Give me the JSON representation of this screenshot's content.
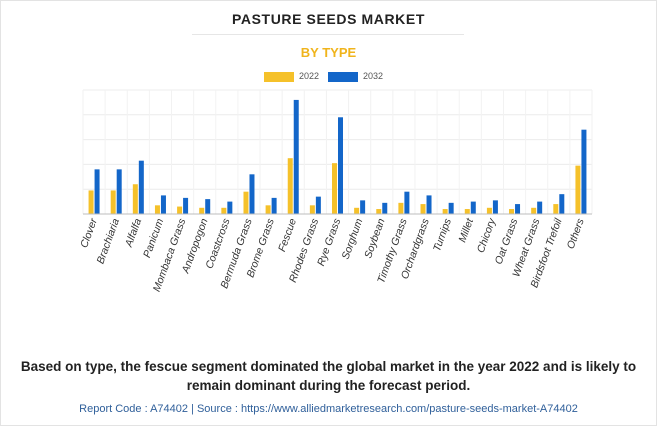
{
  "colors": {
    "y2022": "#f5c12a",
    "y2032": "#1366c9",
    "title": "#222222",
    "subtitle": "#f0b41c",
    "source": "#2f5f9a"
  },
  "chart_data": {
    "type": "bar",
    "title": "PASTURE SEEDS MARKET",
    "subtitle": "BY TYPE",
    "xlabel": "",
    "ylabel": "",
    "grid": true,
    "legend_placement": "top-center",
    "ylim": [
      0,
      100
    ],
    "categories": [
      "Clover",
      "Brachiaria",
      "Alfalfa",
      "Panicum",
      "Mombaca Grass",
      "Andropogon",
      "Coastcross",
      "Bermuda Grass",
      "Brome Grass",
      "Fescue",
      "Rhodes Grass",
      "Rye Grass",
      "Sorghum",
      "Soybean",
      "Timothy Grass",
      "Orchardgrass",
      "Turnips",
      "Millet",
      "Chicory",
      "Oat Grass",
      "Wheat Grass",
      "Birdsfoot Trefoil",
      "Others"
    ],
    "series": [
      {
        "name": "2022",
        "values": [
          19,
          19,
          24,
          7,
          6,
          5,
          5,
          18,
          7,
          45,
          7,
          41,
          5,
          4,
          9,
          8,
          4,
          4,
          5,
          4,
          5,
          8,
          39
        ]
      },
      {
        "name": "2032",
        "values": [
          36,
          36,
          43,
          15,
          13,
          12,
          10,
          32,
          13,
          92,
          14,
          78,
          11,
          9,
          18,
          15,
          9,
          10,
          11,
          8,
          10,
          16,
          68
        ]
      }
    ]
  },
  "caption": "Based on type, the fescue segment dominated the global market in the year 2022 and is likely to remain dominant during the forecast period.",
  "source": "Report Code : A74402  |  Source : https://www.alliedmarketresearch.com/pasture-seeds-market-A74402"
}
